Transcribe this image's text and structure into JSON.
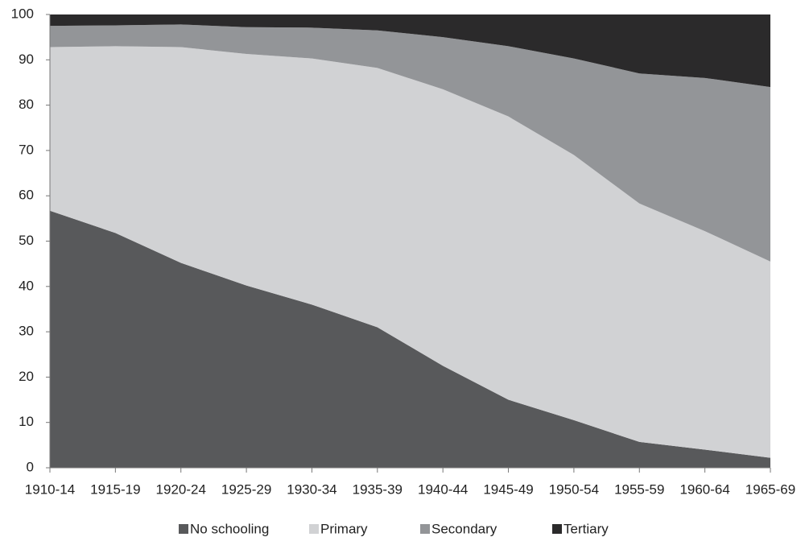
{
  "chart_data": {
    "type": "stacked-area",
    "categories": [
      "1910-14",
      "1915-19",
      "1920-24",
      "1925-29",
      "1930-34",
      "1935-39",
      "1940-44",
      "1945-49",
      "1950-54",
      "1955-59",
      "1960-64",
      "1965-69"
    ],
    "series": [
      {
        "name": "No schooling",
        "color": "#58595b",
        "values": [
          56.7,
          51.8,
          45.2,
          40.2,
          36,
          31,
          22.5,
          15,
          10.5,
          5.7,
          4,
          2.2
        ]
      },
      {
        "name": "Primary",
        "color": "#d1d2d4",
        "values": [
          36.1,
          41.2,
          47.6,
          51.1,
          54.3,
          57.2,
          61,
          62.5,
          58.5,
          52.6,
          48.2,
          43.3
        ]
      },
      {
        "name": "Secondary",
        "color": "#939598",
        "values": [
          4.7,
          4.6,
          5,
          5.9,
          6.8,
          8.3,
          11.5,
          15.5,
          21.3,
          28.7,
          33.8,
          38.5
        ]
      },
      {
        "name": "Tertiary",
        "color": "#2b2a2b",
        "values": [
          2.5,
          2.4,
          2.2,
          2.8,
          2.9,
          3.5,
          5,
          7,
          9.7,
          13,
          14,
          16
        ]
      }
    ],
    "ylim": [
      0,
      100
    ],
    "yticks": [
      0,
      10,
      20,
      30,
      40,
      50,
      60,
      70,
      80,
      90,
      100
    ],
    "legend": "bottom"
  }
}
